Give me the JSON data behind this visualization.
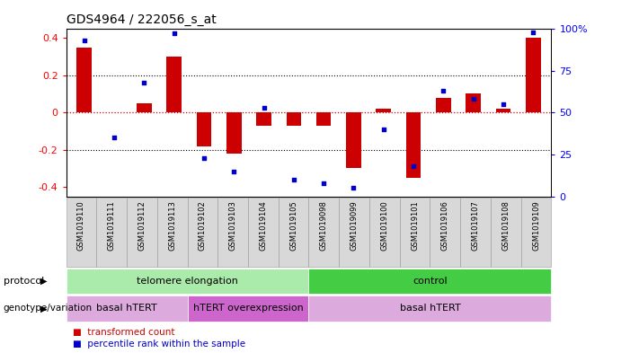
{
  "title": "GDS4964 / 222056_s_at",
  "samples": [
    "GSM1019110",
    "GSM1019111",
    "GSM1019112",
    "GSM1019113",
    "GSM1019102",
    "GSM1019103",
    "GSM1019104",
    "GSM1019105",
    "GSM1019098",
    "GSM1019099",
    "GSM1019100",
    "GSM1019101",
    "GSM1019106",
    "GSM1019107",
    "GSM1019108",
    "GSM1019109"
  ],
  "bar_values": [
    0.35,
    0.0,
    0.05,
    0.3,
    -0.18,
    -0.22,
    -0.07,
    -0.07,
    -0.07,
    -0.3,
    0.02,
    -0.35,
    0.08,
    0.1,
    0.02,
    0.4
  ],
  "dot_values": [
    93,
    35,
    68,
    97,
    23,
    15,
    53,
    10,
    8,
    5,
    40,
    18,
    63,
    58,
    55,
    98
  ],
  "bar_color": "#cc0000",
  "dot_color": "#0000cc",
  "ylim": [
    -0.45,
    0.45
  ],
  "yticks": [
    -0.4,
    -0.2,
    0.0,
    0.2,
    0.4
  ],
  "y2ticks": [
    0,
    25,
    50,
    75,
    100
  ],
  "y2labels": [
    "0",
    "25",
    "50",
    "75",
    "100%"
  ],
  "hline_color": "#cc0000",
  "dotted_line_color": "#000000",
  "protocol_groups": [
    {
      "label": "telomere elongation",
      "start": 0,
      "end": 7,
      "color": "#aaeaaa"
    },
    {
      "label": "control",
      "start": 8,
      "end": 15,
      "color": "#44cc44"
    }
  ],
  "genotype_groups": [
    {
      "label": "basal hTERT",
      "start": 0,
      "end": 3,
      "color": "#ddaadd"
    },
    {
      "label": "hTERT overexpression",
      "start": 4,
      "end": 7,
      "color": "#cc66cc"
    },
    {
      "label": "basal hTERT",
      "start": 8,
      "end": 15,
      "color": "#ddaadd"
    }
  ],
  "protocol_label": "protocol",
  "genotype_label": "genotype/variation",
  "legend_bar_label": "transformed count",
  "legend_dot_label": "percentile rank within the sample",
  "bar_width": 0.5,
  "fig_width": 7.01,
  "fig_height": 3.93,
  "dpi": 100
}
